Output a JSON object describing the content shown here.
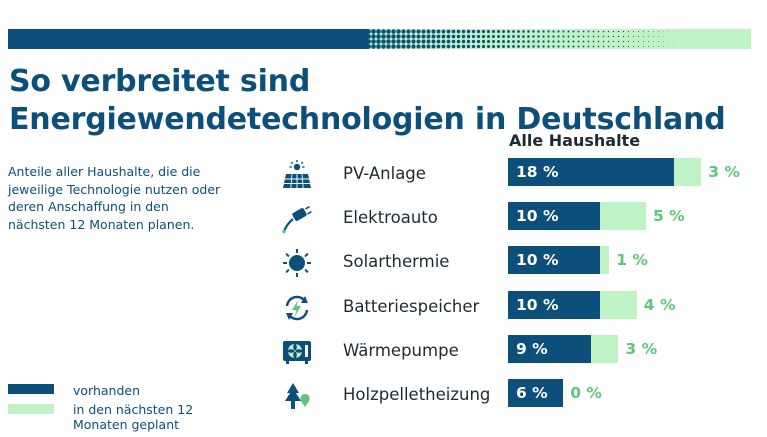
{
  "colors": {
    "have": "#0b4f7a",
    "plan": "#bff2c4",
    "plan_text": "#5cc97a"
  },
  "header": {
    "title": "So verbreitet sind Energiewendetechnologien in Deutschland",
    "subtitle": "Anteile aller Haushalte, die die jeweilige Technologie nutzen oder deren Anschaffung in den nächsten 12 Monaten planen."
  },
  "legend": {
    "have_label": "vorhanden",
    "plan_label": "in den nächsten 12 Monaten geplant"
  },
  "chart_data": {
    "type": "bar",
    "orientation": "horizontal",
    "stacked": true,
    "column_header": "Alle Haushalte",
    "categories": [
      "PV-Anlage",
      "Elektroauto",
      "Solarthermie",
      "Batteriespeicher",
      "Wärmepumpe",
      "Holzpelletheizung"
    ],
    "icons": [
      "solar-panel-icon",
      "ev-charger-icon",
      "sun-icon",
      "battery-storage-icon",
      "heat-pump-icon",
      "tree-icon"
    ],
    "series": [
      {
        "name": "vorhanden",
        "values": [
          18,
          10,
          10,
          10,
          9,
          6
        ],
        "labels": [
          "18 %",
          "10 %",
          "10 %",
          "10 %",
          "9 %",
          "6 %"
        ]
      },
      {
        "name": "in den nächsten 12 Monaten geplant",
        "values": [
          3,
          5,
          1,
          4,
          3,
          0
        ],
        "labels": [
          "3 %",
          "5 %",
          "1 %",
          "4 %",
          "3 %",
          "0 %"
        ]
      }
    ],
    "unit": "%",
    "grid": false,
    "legend_position": "bottom-left"
  }
}
